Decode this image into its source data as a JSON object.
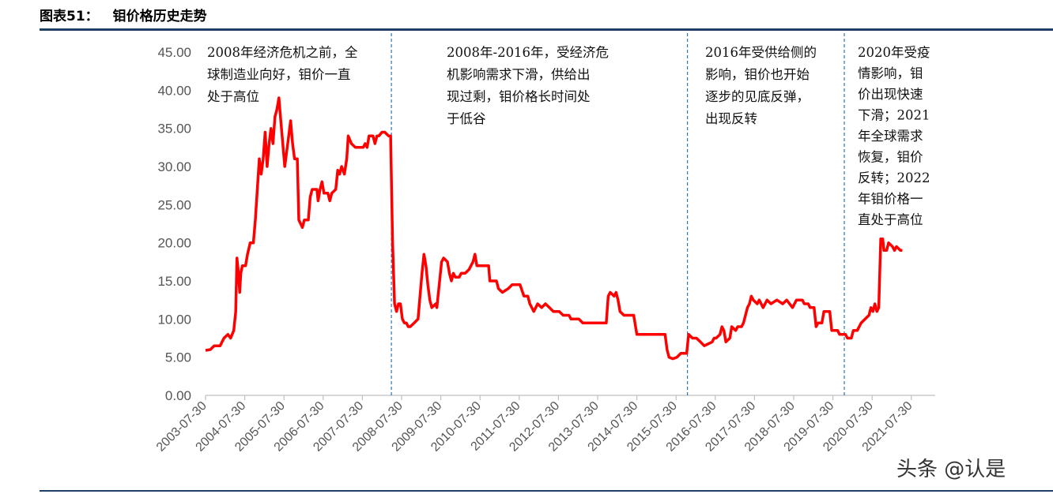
{
  "figure": {
    "label": "图表51：",
    "title": "钼价格历史走势"
  },
  "watermark": "头条 @认是",
  "chart_data": {
    "type": "line",
    "title": "钼价格历史走势",
    "xlabel": "",
    "ylabel": "",
    "ylim": [
      0,
      45
    ],
    "yticks": [
      "0.00",
      "5.00",
      "10.00",
      "15.00",
      "20.00",
      "25.00",
      "30.00",
      "35.00",
      "40.00",
      "45.00"
    ],
    "xticks": [
      "2003-07-30",
      "2004-07-30",
      "2005-07-30",
      "2006-07-30",
      "2007-07-30",
      "2008-07-30",
      "2009-07-30",
      "2010-07-30",
      "2011-07-30",
      "2012-07-30",
      "2013-07-30",
      "2014-07-30",
      "2015-07-30",
      "2016-07-30",
      "2017-07-30",
      "2018-07-30",
      "2019-07-30",
      "2020-07-30",
      "2021-07-30"
    ],
    "grid": false,
    "line_color": "#ff0000",
    "series": [
      {
        "points": [
          [
            2003.58,
            5.9
          ],
          [
            2003.7,
            6.0
          ],
          [
            2003.8,
            6.5
          ],
          [
            2003.95,
            6.5
          ],
          [
            2004.05,
            7.5
          ],
          [
            2004.15,
            8.0
          ],
          [
            2004.22,
            7.5
          ],
          [
            2004.3,
            8.5
          ],
          [
            2004.35,
            11.0
          ],
          [
            2004.38,
            18.0
          ],
          [
            2004.42,
            16.0
          ],
          [
            2004.45,
            13.5
          ],
          [
            2004.48,
            16.0
          ],
          [
            2004.52,
            17.0
          ],
          [
            2004.6,
            17.0
          ],
          [
            2004.65,
            18.5
          ],
          [
            2004.72,
            20.0
          ],
          [
            2004.8,
            20.0
          ],
          [
            2004.85,
            23.0
          ],
          [
            2004.9,
            27.0
          ],
          [
            2004.95,
            31.0
          ],
          [
            2005.0,
            29.0
          ],
          [
            2005.05,
            31.0
          ],
          [
            2005.1,
            34.5
          ],
          [
            2005.15,
            30.0
          ],
          [
            2005.2,
            33.0
          ],
          [
            2005.25,
            35.0
          ],
          [
            2005.3,
            33.0
          ],
          [
            2005.35,
            36.5
          ],
          [
            2005.4,
            37.5
          ],
          [
            2005.45,
            39.0
          ],
          [
            2005.5,
            36.0
          ],
          [
            2005.55,
            33.0
          ],
          [
            2005.6,
            30.0
          ],
          [
            2005.65,
            32.0
          ],
          [
            2005.7,
            34.0
          ],
          [
            2005.75,
            36.0
          ],
          [
            2005.8,
            33.0
          ],
          [
            2005.85,
            31.0
          ],
          [
            2005.92,
            31.0
          ],
          [
            2005.96,
            23.0
          ],
          [
            2006.05,
            22.0
          ],
          [
            2006.1,
            23.0
          ],
          [
            2006.2,
            23.0
          ],
          [
            2006.25,
            26.0
          ],
          [
            2006.3,
            27.0
          ],
          [
            2006.42,
            27.0
          ],
          [
            2006.45,
            25.5
          ],
          [
            2006.5,
            27.0
          ],
          [
            2006.55,
            28.0
          ],
          [
            2006.6,
            26.5
          ],
          [
            2006.7,
            26.5
          ],
          [
            2006.75,
            25.5
          ],
          [
            2006.8,
            26.5
          ],
          [
            2006.9,
            27.0
          ],
          [
            2006.95,
            29.5
          ],
          [
            2007.0,
            29.0
          ],
          [
            2007.05,
            30.0
          ],
          [
            2007.12,
            29.0
          ],
          [
            2007.18,
            31.0
          ],
          [
            2007.22,
            34.0
          ],
          [
            2007.3,
            33.0
          ],
          [
            2007.4,
            32.5
          ],
          [
            2007.6,
            32.5
          ],
          [
            2007.65,
            33.0
          ],
          [
            2007.7,
            32.5
          ],
          [
            2007.75,
            34.0
          ],
          [
            2007.85,
            34.0
          ],
          [
            2007.9,
            33.0
          ],
          [
            2007.95,
            34.0
          ],
          [
            2008.0,
            34.0
          ],
          [
            2008.08,
            34.5
          ],
          [
            2008.15,
            34.5
          ],
          [
            2008.25,
            34.0
          ],
          [
            2008.3,
            34.0
          ],
          [
            2008.35,
            20.0
          ],
          [
            2008.4,
            12.0
          ],
          [
            2008.45,
            11.0
          ],
          [
            2008.5,
            12.0
          ],
          [
            2008.55,
            12.0
          ],
          [
            2008.6,
            10.0
          ],
          [
            2008.65,
            9.5
          ],
          [
            2008.7,
            9.5
          ],
          [
            2008.75,
            9.0
          ],
          [
            2008.8,
            9.0
          ],
          [
            2008.9,
            9.5
          ],
          [
            2009.0,
            10.0
          ],
          [
            2009.05,
            13.0
          ],
          [
            2009.1,
            16.0
          ],
          [
            2009.15,
            18.5
          ],
          [
            2009.2,
            17.0
          ],
          [
            2009.25,
            14.5
          ],
          [
            2009.3,
            12.5
          ],
          [
            2009.35,
            11.5
          ],
          [
            2009.45,
            12.0
          ],
          [
            2009.48,
            11.5
          ],
          [
            2009.55,
            15.0
          ],
          [
            2009.6,
            17.5
          ],
          [
            2009.65,
            18.0
          ],
          [
            2009.75,
            17.5
          ],
          [
            2009.8,
            16.0
          ],
          [
            2009.85,
            15.0
          ],
          [
            2009.9,
            16.0
          ],
          [
            2009.95,
            15.5
          ],
          [
            2010.05,
            15.5
          ],
          [
            2010.1,
            16.0
          ],
          [
            2010.2,
            16.0
          ],
          [
            2010.3,
            16.5
          ],
          [
            2010.4,
            17.5
          ],
          [
            2010.45,
            18.5
          ],
          [
            2010.5,
            17.0
          ],
          [
            2010.55,
            17.0
          ],
          [
            2010.8,
            17.0
          ],
          [
            2010.83,
            15.0
          ],
          [
            2011.0,
            15.0
          ],
          [
            2011.05,
            14.0
          ],
          [
            2011.15,
            13.5
          ],
          [
            2011.3,
            14.0
          ],
          [
            2011.4,
            14.5
          ],
          [
            2011.6,
            14.5
          ],
          [
            2011.7,
            13.0
          ],
          [
            2011.8,
            13.0
          ],
          [
            2011.85,
            12.0
          ],
          [
            2011.9,
            11.5
          ],
          [
            2011.95,
            11.0
          ],
          [
            2012.05,
            12.0
          ],
          [
            2012.15,
            11.5
          ],
          [
            2012.25,
            12.0
          ],
          [
            2012.35,
            11.5
          ],
          [
            2012.45,
            11.0
          ],
          [
            2012.6,
            11.0
          ],
          [
            2012.7,
            10.5
          ],
          [
            2012.85,
            10.5
          ],
          [
            2012.9,
            10.0
          ],
          [
            2013.1,
            10.0
          ],
          [
            2013.2,
            9.5
          ],
          [
            2013.8,
            9.5
          ],
          [
            2013.85,
            13.0
          ],
          [
            2013.9,
            13.5
          ],
          [
            2014.0,
            13.0
          ],
          [
            2014.05,
            13.5
          ],
          [
            2014.1,
            12.5
          ],
          [
            2014.15,
            11.0
          ],
          [
            2014.25,
            10.5
          ],
          [
            2014.5,
            10.5
          ],
          [
            2014.58,
            8.0
          ],
          [
            2015.3,
            8.0
          ],
          [
            2015.35,
            6.0
          ],
          [
            2015.4,
            5.0
          ],
          [
            2015.5,
            4.8
          ],
          [
            2015.6,
            5.0
          ],
          [
            2015.7,
            5.5
          ],
          [
            2015.8,
            5.5
          ],
          [
            2015.85,
            5.5
          ],
          [
            2015.9,
            8.0
          ],
          [
            2016.0,
            7.5
          ],
          [
            2016.1,
            7.5
          ],
          [
            2016.2,
            7.0
          ],
          [
            2016.3,
            6.5
          ],
          [
            2016.5,
            7.0
          ],
          [
            2016.55,
            7.5
          ],
          [
            2016.6,
            7.5
          ],
          [
            2016.7,
            8.0
          ],
          [
            2016.75,
            9.0
          ],
          [
            2016.8,
            8.5
          ],
          [
            2016.85,
            7.0
          ],
          [
            2016.95,
            7.5
          ],
          [
            2017.0,
            9.0
          ],
          [
            2017.1,
            8.5
          ],
          [
            2017.15,
            9.0
          ],
          [
            2017.25,
            9.0
          ],
          [
            2017.3,
            9.5
          ],
          [
            2017.4,
            11.5
          ],
          [
            2017.45,
            12.0
          ],
          [
            2017.5,
            13.0
          ],
          [
            2017.55,
            12.5
          ],
          [
            2017.65,
            12.0
          ],
          [
            2017.7,
            12.5
          ],
          [
            2017.8,
            11.5
          ],
          [
            2017.85,
            12.0
          ],
          [
            2017.9,
            12.5
          ],
          [
            2018.0,
            12.0
          ],
          [
            2018.15,
            12.5
          ],
          [
            2018.3,
            12.0
          ],
          [
            2018.4,
            12.5
          ],
          [
            2018.55,
            11.5
          ],
          [
            2018.6,
            12.0
          ],
          [
            2018.65,
            12.5
          ],
          [
            2018.8,
            12.5
          ],
          [
            2018.85,
            12.0
          ],
          [
            2018.95,
            12.0
          ],
          [
            2019.0,
            11.5
          ],
          [
            2019.05,
            11.5
          ],
          [
            2019.1,
            11.5
          ],
          [
            2019.15,
            9.0
          ],
          [
            2019.2,
            9.5
          ],
          [
            2019.3,
            9.5
          ],
          [
            2019.35,
            11.0
          ],
          [
            2019.5,
            11.0
          ],
          [
            2019.55,
            8.5
          ],
          [
            2019.7,
            8.5
          ],
          [
            2019.75,
            8.0
          ],
          [
            2019.9,
            8.0
          ],
          [
            2019.95,
            7.5
          ],
          [
            2020.05,
            7.5
          ],
          [
            2020.1,
            8.5
          ],
          [
            2020.2,
            8.5
          ],
          [
            2020.3,
            9.5
          ],
          [
            2020.4,
            10.0
          ],
          [
            2020.5,
            10.5
          ],
          [
            2020.55,
            11.5
          ],
          [
            2020.6,
            11.0
          ],
          [
            2020.65,
            12.0
          ],
          [
            2020.7,
            11.0
          ],
          [
            2020.75,
            11.5
          ],
          [
            2020.8,
            20.5
          ],
          [
            2020.85,
            20.5
          ],
          [
            2020.88,
            19.0
          ],
          [
            2020.95,
            19.0
          ],
          [
            2021.0,
            20.0
          ],
          [
            2021.1,
            19.5
          ],
          [
            2021.15,
            19.0
          ],
          [
            2021.2,
            19.5
          ],
          [
            2021.3,
            19.0
          ],
          [
            2021.35,
            19.0
          ]
        ]
      }
    ],
    "dividers": [
      2008.32,
      2015.87,
      2019.87
    ],
    "annotations": [
      {
        "lines": [
          "2008年经济危机之前，全",
          "球制造业向好，钼价一直",
          "处于高位"
        ]
      },
      {
        "lines": [
          "2008年-2016年，受经济危",
          "机影响需求下滑，供给出",
          "现过剩，钼价格长时间处",
          "于低谷"
        ]
      },
      {
        "lines": [
          "2016年受供给侧的",
          "影响，钼价也开始",
          "逐步的见底反弹，",
          "出现反转"
        ]
      },
      {
        "lines": [
          "2020年受疫",
          "情影响，钼",
          "价出现快速",
          "下滑；2021",
          "年全球需求",
          "恢复，钼价",
          "反转；2022",
          "年钼价格一",
          "直处于高位"
        ]
      }
    ]
  }
}
